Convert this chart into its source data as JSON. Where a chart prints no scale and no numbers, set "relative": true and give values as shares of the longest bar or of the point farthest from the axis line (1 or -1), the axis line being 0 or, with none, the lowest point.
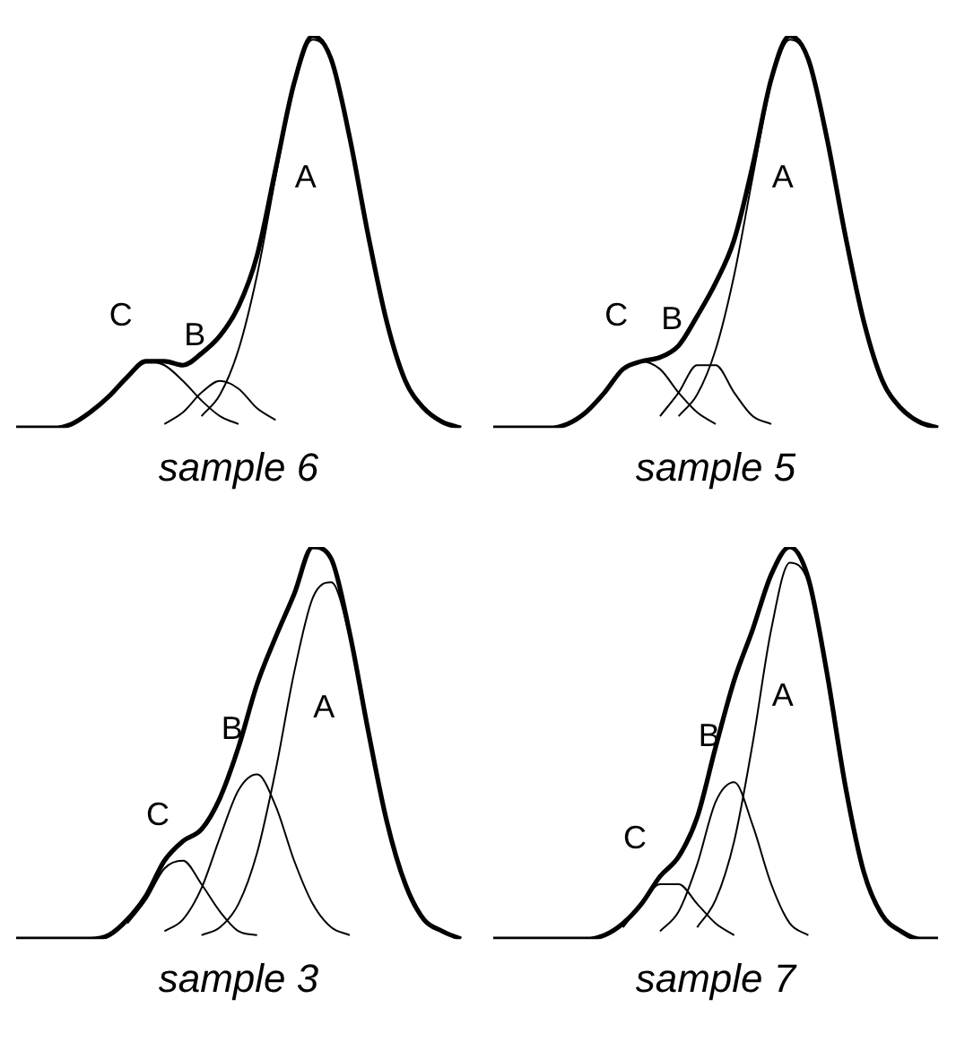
{
  "chart_data": [
    {
      "type": "line",
      "relative": true,
      "title": "sample 6",
      "categories": [
        null,
        null,
        null,
        null,
        null,
        null,
        null,
        null,
        null,
        null,
        null,
        null,
        null,
        null,
        null,
        null,
        null,
        null,
        null,
        null,
        null,
        null,
        null,
        null,
        null
      ],
      "series": [
        {
          "color": "#000000",
          "values": [
            0,
            0,
            0,
            0.01,
            0.04,
            0.08,
            0.13,
            0.17,
            0.17,
            0.16,
            0.19,
            0.235,
            0.31,
            0.44,
            0.66,
            0.88,
            1.0,
            0.94,
            0.74,
            0.49,
            0.27,
            0.12,
            0.05,
            0.015,
            0
          ]
        },
        {
          "name": "A",
          "color": "#000000",
          "values": [
            null,
            null,
            null,
            null,
            null,
            null,
            null,
            null,
            null,
            null,
            0.03,
            0.085,
            0.2,
            0.39,
            0.64,
            0.88,
            0.99,
            0.94,
            0.74,
            0.49,
            0.27,
            0.12,
            0.05,
            0.015,
            null
          ]
        },
        {
          "name": "B",
          "color": "#000000",
          "values": [
            null,
            null,
            null,
            null,
            null,
            null,
            null,
            null,
            0.01,
            0.04,
            0.09,
            0.12,
            0.1,
            0.05,
            0.02,
            null,
            null,
            null,
            null,
            null,
            null,
            null,
            null,
            null,
            null
          ]
        },
        {
          "name": "C",
          "color": "#000000",
          "values": [
            null,
            null,
            null,
            null,
            0.04,
            0.08,
            0.13,
            0.17,
            0.16,
            0.12,
            0.07,
            0.03,
            0.01,
            null,
            null,
            null,
            null,
            null,
            null,
            null,
            null,
            null,
            null,
            null,
            null
          ]
        }
      ]
    },
    {
      "type": "line",
      "relative": true,
      "title": "sample 5",
      "categories": [
        null,
        null,
        null,
        null,
        null,
        null,
        null,
        null,
        null,
        null,
        null,
        null,
        null,
        null,
        null,
        null,
        null,
        null,
        null,
        null,
        null,
        null,
        null,
        null,
        null
      ],
      "series": [
        {
          "color": "#000000",
          "values": [
            0,
            0,
            0,
            0,
            0.01,
            0.04,
            0.09,
            0.15,
            0.17,
            0.18,
            0.21,
            0.285,
            0.37,
            0.48,
            0.67,
            0.89,
            1.0,
            0.94,
            0.74,
            0.49,
            0.27,
            0.12,
            0.05,
            0.015,
            0
          ]
        },
        {
          "name": "A",
          "color": "#000000",
          "values": [
            null,
            null,
            null,
            null,
            null,
            null,
            null,
            null,
            null,
            null,
            0.03,
            0.085,
            0.2,
            0.39,
            0.64,
            0.88,
            0.99,
            0.94,
            0.74,
            0.49,
            0.27,
            0.12,
            0.05,
            0.015,
            null
          ]
        },
        {
          "name": "B",
          "color": "#000000",
          "values": [
            null,
            null,
            null,
            null,
            null,
            null,
            null,
            null,
            null,
            0.03,
            0.09,
            0.16,
            0.16,
            0.09,
            0.03,
            0.01,
            null,
            null,
            null,
            null,
            null,
            null,
            null,
            null,
            null
          ]
        },
        {
          "name": "C",
          "color": "#000000",
          "values": [
            null,
            null,
            null,
            null,
            null,
            0.04,
            0.09,
            0.15,
            0.17,
            0.15,
            0.09,
            0.04,
            0.01,
            null,
            null,
            null,
            null,
            null,
            null,
            null,
            null,
            null,
            null,
            null,
            null
          ]
        }
      ]
    },
    {
      "type": "line",
      "relative": true,
      "title": "sample 3",
      "categories": [
        null,
        null,
        null,
        null,
        null,
        null,
        null,
        null,
        null,
        null,
        null,
        null,
        null,
        null,
        null,
        null,
        null,
        null,
        null,
        null,
        null,
        null,
        null,
        null,
        null
      ],
      "series": [
        {
          "color": "#000000",
          "values": [
            0,
            0,
            0,
            0,
            0,
            0.01,
            0.05,
            0.11,
            0.2,
            0.25,
            0.28,
            0.36,
            0.49,
            0.65,
            0.77,
            0.88,
            1.0,
            0.97,
            0.78,
            0.53,
            0.3,
            0.14,
            0.05,
            0.02,
            0
          ]
        },
        {
          "name": "A",
          "color": "#000000",
          "values": [
            null,
            null,
            null,
            null,
            null,
            null,
            null,
            null,
            null,
            null,
            0.01,
            0.03,
            0.09,
            0.22,
            0.43,
            0.68,
            0.87,
            0.91,
            0.77,
            0.53,
            0.3,
            0.14,
            0.05,
            0.02,
            null
          ]
        },
        {
          "name": "B",
          "color": "#000000",
          "values": [
            null,
            null,
            null,
            null,
            null,
            null,
            null,
            null,
            0.02,
            0.05,
            0.13,
            0.26,
            0.38,
            0.42,
            0.34,
            0.2,
            0.09,
            0.03,
            0.01,
            null,
            null,
            null,
            null,
            null,
            null
          ]
        },
        {
          "name": "C",
          "color": "#000000",
          "values": [
            null,
            null,
            null,
            null,
            null,
            null,
            0.04,
            0.1,
            0.18,
            0.2,
            0.14,
            0.07,
            0.02,
            0.01,
            null,
            null,
            null,
            null,
            null,
            null,
            null,
            null,
            null,
            null,
            null
          ]
        }
      ]
    },
    {
      "type": "line",
      "relative": true,
      "title": "sample 7",
      "categories": [
        null,
        null,
        null,
        null,
        null,
        null,
        null,
        null,
        null,
        null,
        null,
        null,
        null,
        null,
        null,
        null,
        null,
        null,
        null,
        null,
        null,
        null,
        null,
        null,
        null
      ],
      "series": [
        {
          "color": "#000000",
          "values": [
            0,
            0,
            0,
            0,
            0,
            0,
            0.01,
            0.04,
            0.09,
            0.16,
            0.21,
            0.31,
            0.49,
            0.66,
            0.79,
            0.93,
            1.0,
            0.92,
            0.68,
            0.39,
            0.17,
            0.06,
            0.02,
            0,
            0
          ]
        },
        {
          "name": "A",
          "color": "#000000",
          "values": [
            null,
            null,
            null,
            null,
            null,
            null,
            null,
            null,
            null,
            null,
            null,
            0.03,
            0.1,
            0.25,
            0.5,
            0.79,
            0.96,
            0.91,
            0.68,
            0.39,
            0.17,
            0.06,
            0.02,
            null,
            null
          ]
        },
        {
          "name": "B",
          "color": "#000000",
          "values": [
            null,
            null,
            null,
            null,
            null,
            null,
            null,
            null,
            null,
            0.02,
            0.07,
            0.19,
            0.35,
            0.4,
            0.29,
            0.14,
            0.04,
            0.01,
            null,
            null,
            null,
            null,
            null,
            null,
            null
          ]
        },
        {
          "name": "C",
          "color": "#000000",
          "values": [
            null,
            null,
            null,
            null,
            null,
            null,
            null,
            0.03,
            0.09,
            0.14,
            0.14,
            0.09,
            0.04,
            0.01,
            null,
            null,
            null,
            null,
            null,
            null,
            null,
            null,
            null,
            null,
            null
          ]
        }
      ]
    }
  ]
}
